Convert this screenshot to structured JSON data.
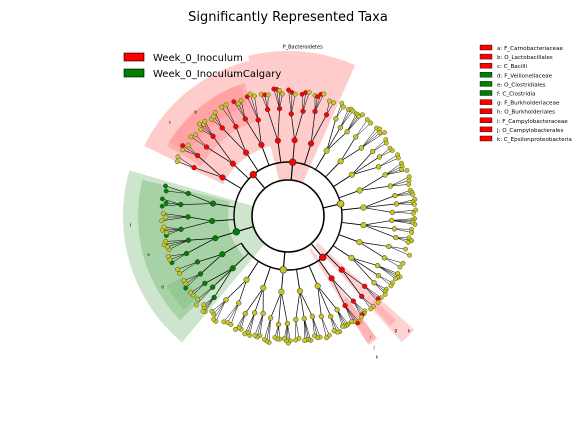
{
  "chart_data": {
    "type": "cladogram",
    "title": "Significantly Represented Taxa",
    "groups": [
      {
        "name": "Week_0_Inoculum",
        "color": "#ff0000"
      },
      {
        "name": "Week_0_InoculumCalgary",
        "color": "#008000"
      }
    ],
    "taxa": [
      {
        "label": "a: F_Carnobacteriaceae",
        "group": "Week_0_Inoculum"
      },
      {
        "label": "b: O_Lactobacillales",
        "group": "Week_0_Inoculum"
      },
      {
        "label": "c: C_Bacilli",
        "group": "Week_0_Inoculum"
      },
      {
        "label": "d: F_Veillonellaceae",
        "group": "Week_0_InoculumCalgary"
      },
      {
        "label": "e: O_Clostridiales",
        "group": "Week_0_InoculumCalgary"
      },
      {
        "label": "f: C_Clostridia",
        "group": "Week_0_InoculumCalgary"
      },
      {
        "label": "g: F_Burkholderiaceae",
        "group": "Week_0_Inoculum"
      },
      {
        "label": "h: O_Burkholderiales",
        "group": "Week_0_Inoculum"
      },
      {
        "label": "i: F_Campylobacteraceae",
        "group": "Week_0_Inoculum"
      },
      {
        "label": "j: O_Campylobacterales",
        "group": "Week_0_Inoculum"
      },
      {
        "label": "k: C_Epsilonproteobacteria",
        "group": "Week_0_Inoculum"
      }
    ],
    "clade_labels": {
      "bacteroidetes": "P_Bacteroidetes",
      "a": "a",
      "b": "b",
      "c": "c",
      "d": "d",
      "e": "e",
      "f": "f",
      "g": "g",
      "h": "h",
      "i": "i",
      "j": "j",
      "k": "k"
    },
    "colors": {
      "red_fill": "#ff9999",
      "green_fill": "#7fbf7f",
      "neutral_node": "#c8c820"
    }
  }
}
